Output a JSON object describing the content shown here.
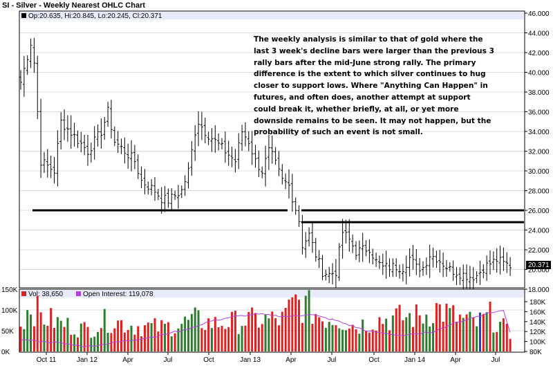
{
  "title": "SI - Silver - Weekly Nearest OHLC Chart",
  "legend_price": "Op:20.635, Hi:20.845, Lo:20.245, Cl:20.371",
  "legend_vol": "Vol: 38,650",
  "legend_oi": "Open Interest: 119,078",
  "last_price_label": "20.371",
  "annotation": "The weekly analysis is similar to that of gold where the last 3 week's decline bars were larger than the previous 3 rally bars after the mid-June strong rally.  The primary difference is the extent to which silver continues to hug closer to support lows. Where \"Anything Can Happen\" in futures, and often does, another attempt at support could break it, whether briefly, at all, or yet more downside remains to be seen.  It may not happen, but the probability of such an event is not small.",
  "colors": {
    "up_volume": "#2e7d2e",
    "down_volume": "#e02020",
    "blue_volume": "#1f3fbf",
    "open_interest": "#b040e0",
    "header": "#e8ecfa"
  },
  "chart_data": {
    "type": "ohlc",
    "price_axis": {
      "ticks": [
        "46.000",
        "44.000",
        "42.000",
        "40.000",
        "38.000",
        "36.000",
        "34.000",
        "32.000",
        "30.000",
        "28.000",
        "26.000",
        "24.000",
        "22.000",
        "20.000",
        "18.000"
      ],
      "range": [
        18,
        46
      ]
    },
    "volume_axis": {
      "ticks": [
        "150K",
        "100K",
        "50K",
        "0K"
      ],
      "range": [
        0,
        150000
      ]
    },
    "oi_axis": {
      "ticks": [
        "180K",
        "160K",
        "140K",
        "120K",
        "100K",
        "80K"
      ],
      "range": [
        80000,
        180000
      ]
    },
    "x_tick_labels": [
      "Oct 11",
      "Jan 12",
      "Apr",
      "Jul",
      "Oct",
      "Jan 13",
      "Apr",
      "Jul",
      "Oct",
      "Jan 14",
      "Apr",
      "Jul"
    ],
    "support_lines": [
      {
        "from": "Aug 2011",
        "to": "Mar 2013",
        "value": 26
      },
      {
        "from": "Apr 2013",
        "to": "Aug 2014",
        "value": 26
      },
      {
        "from": "Apr 2013",
        "to": "Aug 2014",
        "value": 24.8
      }
    ],
    "anchors": [
      [
        0,
        39
      ],
      [
        3,
        43
      ],
      [
        4,
        41
      ],
      [
        6,
        31
      ],
      [
        10,
        30
      ],
      [
        12,
        35
      ],
      [
        20,
        32
      ],
      [
        24,
        34
      ],
      [
        26,
        36
      ],
      [
        28,
        33
      ],
      [
        34,
        31
      ],
      [
        36,
        29
      ],
      [
        40,
        28
      ],
      [
        42,
        27.2
      ],
      [
        44,
        27
      ],
      [
        48,
        28
      ],
      [
        50,
        30
      ],
      [
        52,
        34
      ],
      [
        53,
        35
      ],
      [
        55,
        34
      ],
      [
        58,
        33
      ],
      [
        64,
        31
      ],
      [
        66,
        34
      ],
      [
        68,
        33
      ],
      [
        70,
        31
      ],
      [
        72,
        30
      ],
      [
        74,
        32
      ],
      [
        75,
        31.5
      ],
      [
        78,
        29
      ],
      [
        80,
        28.5
      ],
      [
        83,
        25
      ],
      [
        84,
        22.5
      ],
      [
        86,
        23.5
      ],
      [
        88,
        21.5
      ],
      [
        90,
        19.8
      ],
      [
        92,
        19.5
      ],
      [
        94,
        19.8
      ],
      [
        96,
        23.8
      ],
      [
        98,
        23
      ],
      [
        100,
        21.8
      ],
      [
        104,
        22.2
      ],
      [
        106,
        20.8
      ],
      [
        108,
        20.2
      ],
      [
        112,
        20.3
      ],
      [
        114,
        20.2
      ],
      [
        116,
        21.2
      ],
      [
        118,
        20.2
      ],
      [
        120,
        20.2
      ],
      [
        122,
        21.5
      ],
      [
        124,
        21.2
      ],
      [
        128,
        20
      ],
      [
        132,
        19.5
      ],
      [
        134,
        19.3
      ],
      [
        136,
        19.4
      ],
      [
        138,
        20.2
      ],
      [
        142,
        21
      ],
      [
        144,
        20.6
      ],
      [
        146,
        20.4
      ]
    ],
    "volume_anchors": [
      [
        0,
        70000
      ],
      [
        3,
        120000
      ],
      [
        6,
        90000
      ],
      [
        12,
        70000
      ],
      [
        20,
        55000
      ],
      [
        26,
        80000
      ],
      [
        34,
        65000
      ],
      [
        42,
        60000
      ],
      [
        48,
        70000
      ],
      [
        52,
        80000
      ],
      [
        58,
        70000
      ],
      [
        64,
        75000
      ],
      [
        70,
        80000
      ],
      [
        78,
        80000
      ],
      [
        82,
        125000
      ],
      [
        86,
        110000
      ],
      [
        90,
        85000
      ],
      [
        94,
        85000
      ],
      [
        100,
        65000
      ],
      [
        106,
        80000
      ],
      [
        112,
        85000
      ],
      [
        120,
        90000
      ],
      [
        124,
        110000
      ],
      [
        130,
        85000
      ],
      [
        136,
        70000
      ],
      [
        140,
        90000
      ],
      [
        144,
        60000
      ],
      [
        146,
        40000
      ]
    ],
    "open_interest_anchors": [
      [
        0,
        104000
      ],
      [
        10,
        98000
      ],
      [
        20,
        90000
      ],
      [
        30,
        100000
      ],
      [
        40,
        110000
      ],
      [
        50,
        125000
      ],
      [
        56,
        140000
      ],
      [
        62,
        148000
      ],
      [
        70,
        155000
      ],
      [
        80,
        150000
      ],
      [
        86,
        155000
      ],
      [
        94,
        142000
      ],
      [
        104,
        120000
      ],
      [
        114,
        112000
      ],
      [
        122,
        118000
      ],
      [
        130,
        138000
      ],
      [
        136,
        150000
      ],
      [
        140,
        158000
      ],
      [
        144,
        162000
      ],
      [
        146,
        119078
      ]
    ]
  }
}
